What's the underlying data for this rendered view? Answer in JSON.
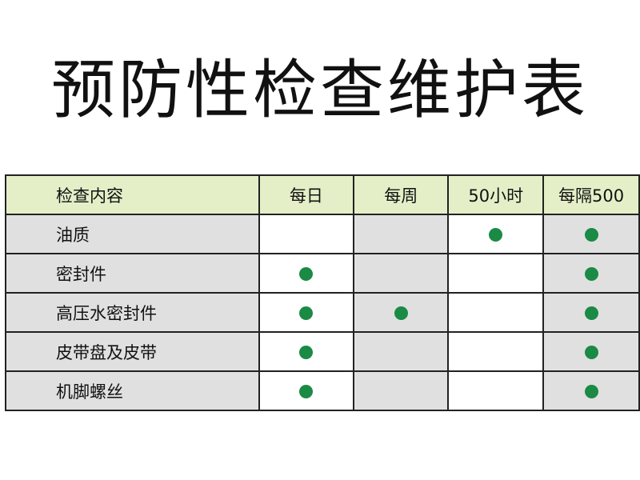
{
  "title": "预防性检查维护表",
  "table": {
    "headers": [
      "检查内容",
      "每日",
      "每周",
      "50小时",
      "每隔500"
    ],
    "rows": [
      {
        "item": "油质",
        "marks": [
          false,
          false,
          true,
          true
        ]
      },
      {
        "item": "密封件",
        "marks": [
          true,
          false,
          false,
          true
        ]
      },
      {
        "item": "高压水密封件",
        "marks": [
          true,
          true,
          false,
          true
        ]
      },
      {
        "item": "皮带盘及皮带",
        "marks": [
          true,
          false,
          false,
          true
        ]
      },
      {
        "item": "机脚螺丝",
        "marks": [
          true,
          false,
          false,
          true
        ]
      }
    ]
  },
  "colors": {
    "header_bg": "#e4efc8",
    "shade_bg": "#e0e0e0",
    "dot": "#1a8a45"
  },
  "icons": {
    "mark": "filled-circle-icon"
  }
}
